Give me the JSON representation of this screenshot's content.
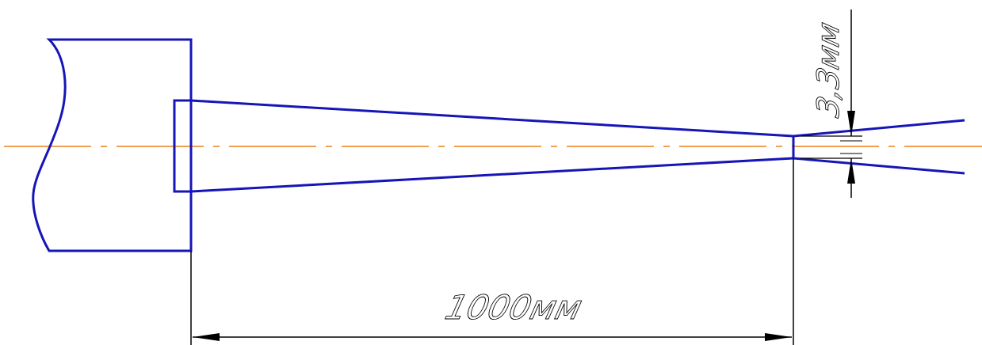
{
  "drawing": {
    "dimension_length": "1000мм",
    "dimension_gap": "3,3мм"
  },
  "colors": {
    "outline": "#1515b8",
    "centerline": "#f0a050",
    "dimension": "#000000",
    "background": "#ffffff"
  }
}
